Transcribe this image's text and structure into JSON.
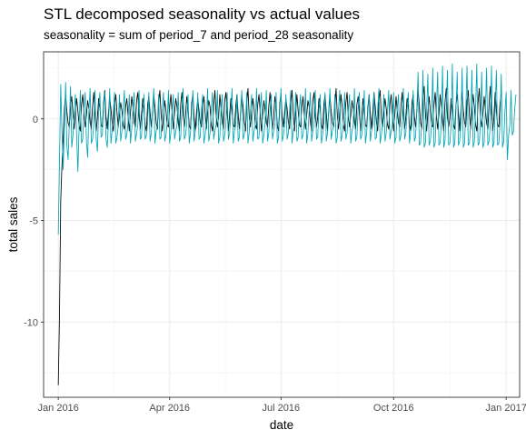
{
  "chart_data": {
    "type": "line",
    "title": "STL decomposed seasonality vs actual values",
    "subtitle": "seasonality = sum of period_7 and period_28 seasonality",
    "xlabel": "date",
    "ylabel": "total sales",
    "x_range": [
      "2015-12-20",
      "2017-01-12"
    ],
    "ylim": [
      -13.7,
      3.3
    ],
    "x_ticks": [
      {
        "date": "2016-01-01",
        "label": "Jan 2016"
      },
      {
        "date": "2016-04-01",
        "label": "Apr 2016"
      },
      {
        "date": "2016-07-01",
        "label": "Jul 2016"
      },
      {
        "date": "2016-10-01",
        "label": "Oct 2016"
      },
      {
        "date": "2017-01-01",
        "label": "Jan 2017"
      }
    ],
    "y_ticks": [
      {
        "value": 0,
        "label": "0"
      },
      {
        "value": -5,
        "label": "-5"
      },
      {
        "value": -10,
        "label": "-10"
      }
    ],
    "grid": true,
    "legend": "none",
    "series": [
      {
        "color": "#000000",
        "start_date": "2016-01-01",
        "values": [
          -13.1,
          -9.6,
          -4.0,
          -2.3,
          -1.0,
          0.5,
          1.2,
          0.4,
          -0.2,
          -0.4,
          0.6,
          1.1,
          0.2,
          -0.5,
          0.3,
          1.0,
          0.4,
          -0.3,
          -0.6,
          0.7,
          1.2,
          0.3,
          -0.4,
          0.2,
          0.9,
          0.5,
          -0.2,
          -0.5,
          0.6,
          1.3,
          0.2,
          -0.6,
          0.1,
          1.0,
          0.6,
          -0.3,
          -0.4,
          0.8,
          1.4,
          0.1,
          -0.5,
          0.3,
          1.1,
          0.5,
          -0.2,
          -0.6,
          0.7,
          1.2,
          0.3,
          -0.4,
          0.2,
          0.8,
          0.4,
          -0.3,
          -0.5,
          0.6,
          1.0,
          0.2,
          -0.6,
          0.3,
          1.1,
          0.6,
          -0.2,
          -0.4,
          0.9,
          1.3,
          0.1,
          -0.5,
          0.2,
          1.0,
          0.5,
          -0.3,
          -0.6,
          0.7,
          1.1,
          0.3,
          -0.4,
          0.4,
          1.2,
          0.6,
          -0.2,
          -0.5,
          0.8,
          1.4,
          0.2,
          -0.6,
          0.1,
          0.9,
          0.4,
          -0.3,
          -0.4,
          0.6,
          1.2,
          0.3,
          -0.5,
          0.3,
          1.0,
          0.6,
          -0.2,
          -0.6,
          0.7,
          1.3,
          0.2,
          -0.4,
          0.2,
          1.1,
          0.5,
          -0.3,
          -0.5,
          0.8,
          1.2,
          0.1,
          -0.6,
          0.4,
          1.0,
          0.4,
          -0.2,
          -0.4,
          0.6,
          1.1,
          0.3,
          -0.5,
          0.3,
          0.9,
          0.6,
          -0.3,
          -0.6,
          0.7,
          1.4,
          0.2,
          -0.4,
          0.1,
          1.2,
          0.5,
          -0.2,
          -0.5,
          0.9,
          1.3,
          0.3,
          -0.6,
          0.2,
          1.0,
          0.4,
          -0.3,
          -0.4,
          0.6,
          1.2,
          0.2,
          -0.5,
          0.4,
          1.1,
          0.6,
          -0.2,
          -0.6,
          0.8,
          1.5,
          0.1,
          -0.4,
          0.3,
          1.0,
          0.5,
          -0.3,
          -0.5,
          0.7,
          1.2,
          0.3,
          -0.6,
          0.2,
          0.9,
          0.4,
          -0.2,
          -0.4,
          0.6,
          1.3,
          0.2,
          -0.5,
          0.1,
          1.1,
          0.6,
          -0.3,
          -0.6,
          0.8,
          1.2,
          0.1,
          -0.4,
          0.4,
          1.0,
          0.5,
          -0.2,
          -0.5,
          0.7,
          1.4,
          0.3,
          -0.6,
          0.3,
          1.2,
          0.4,
          -0.3,
          -0.4,
          0.6,
          1.1,
          0.2,
          -0.5,
          0.2,
          0.9,
          0.6,
          -0.2,
          -0.6,
          0.9,
          1.3,
          0.1,
          -0.4,
          0.1,
          1.0,
          0.5,
          -0.3,
          -0.5,
          0.7,
          1.2,
          0.3,
          -0.6,
          0.4,
          1.1,
          0.4,
          -0.2,
          -0.4,
          0.6,
          1.5,
          0.2,
          -0.5,
          0.3,
          1.2,
          0.6,
          -0.3,
          -0.6,
          0.8,
          1.3,
          0.1,
          -0.4,
          0.2,
          0.9,
          0.5,
          -0.2,
          -0.5,
          0.7,
          1.1,
          0.3,
          -0.6,
          0.1,
          1.0,
          0.4,
          -0.3,
          -0.4,
          0.6,
          1.2,
          0.2,
          -0.5,
          0.4,
          1.3,
          0.6,
          -0.2,
          -0.6,
          0.9,
          1.4,
          0.1,
          -0.4,
          0.3,
          1.0,
          0.5,
          -0.3,
          -0.5,
          0.7,
          1.2,
          0.3,
          -0.6,
          0.2,
          1.1,
          0.4,
          -0.2,
          -0.4,
          0.6,
          1.3,
          0.2,
          -0.5,
          0.1,
          1.0,
          0.6,
          -0.3,
          -0.6,
          0.8,
          1.2,
          0.1,
          -0.4,
          0.4,
          1.4,
          0.7,
          -0.2,
          -0.5,
          0.9,
          1.6,
          0.3,
          -0.6,
          0.3,
          1.1,
          0.4,
          -0.3,
          -0.4,
          0.7,
          1.3,
          0.2,
          -0.5,
          0.2,
          1.2,
          0.6,
          -0.2,
          -0.6,
          0.8,
          1.5,
          0.1,
          -0.4,
          0.1,
          1.0,
          0.5,
          -0.3,
          -0.5,
          0.7,
          1.2,
          0.3,
          -0.6,
          0.4,
          1.3,
          0.4,
          -0.2,
          -0.4,
          0.9,
          1.4,
          0.2,
          -0.5,
          0.3,
          1.2,
          0.6,
          -0.3,
          -0.6,
          0.8,
          1.5,
          0.1,
          -0.4,
          0.2,
          1.1,
          0.5,
          -0.2,
          -0.5,
          0.7,
          1.6,
          0.3,
          -0.6,
          0.1,
          1.3,
          0.4,
          -0.3,
          -0.4,
          0.8,
          1.2
        ]
      },
      {
        "color": "#00A5B5",
        "start_date": "2016-01-01",
        "values": [
          -5.7,
          -2.1,
          1.7,
          -0.6,
          -2.5,
          -0.3,
          1.8,
          -1.3,
          -2.0,
          -0.2,
          1.6,
          -1.4,
          -0.8,
          0.5,
          1.2,
          -0.8,
          -2.6,
          -0.4,
          1.4,
          -1.2,
          -1.0,
          0.6,
          1.3,
          -1.1,
          -1.9,
          0.4,
          1.5,
          -1.2,
          -1.0,
          -0.3,
          1.4,
          -1.0,
          -1.6,
          0.5,
          1.3,
          -0.9,
          -0.8,
          0.6,
          1.3,
          -1.0,
          -1.4,
          -0.2,
          1.5,
          -1.2,
          -0.6,
          0.4,
          1.3,
          -1.2,
          -0.9,
          -0.3,
          1.2,
          -1.1,
          -0.6,
          0.5,
          1.4,
          -1.0,
          -0.8,
          -0.2,
          1.2,
          -1.2,
          -0.5,
          0.4,
          1.3,
          -1.1,
          -0.7,
          -0.3,
          1.4,
          -1.0,
          -0.9,
          0.5,
          1.2,
          -1.0,
          -0.8,
          -0.2,
          1.3,
          -1.1,
          -0.7,
          0.4,
          1.5,
          -1.2,
          -0.6,
          -0.3,
          1.2,
          -1.0,
          -0.9,
          0.5,
          1.3,
          -1.1,
          -0.8,
          -0.2,
          1.4,
          -1.2,
          -0.7,
          0.4,
          1.2,
          -1.0,
          -0.6,
          -0.3,
          1.3,
          -1.1,
          -0.9,
          0.5,
          1.5,
          -1.0,
          -0.8,
          -0.2,
          1.2,
          -1.2,
          -0.7,
          0.4,
          1.4,
          -1.1,
          -0.6,
          -0.3,
          1.3,
          -1.0,
          -0.9,
          0.5,
          1.2,
          -1.2,
          -0.8,
          -0.2,
          1.5,
          -1.1,
          -0.7,
          0.4,
          1.3,
          -1.0,
          -0.6,
          -0.3,
          1.4,
          -1.2,
          -0.9,
          0.5,
          1.2,
          -1.1,
          -0.8,
          -0.2,
          1.3,
          -1.0,
          -0.7,
          0.4,
          1.5,
          -1.2,
          -0.6,
          -0.3,
          1.2,
          -1.1,
          -0.9,
          0.5,
          1.4,
          -1.0,
          -0.8,
          -0.2,
          1.3,
          -1.2,
          -0.7,
          0.4,
          1.2,
          -1.1,
          -0.6,
          -0.3,
          1.5,
          -1.0,
          -0.9,
          0.5,
          1.3,
          -1.2,
          -0.8,
          -0.2,
          1.4,
          -1.1,
          -0.7,
          0.4,
          1.2,
          -1.0,
          -0.6,
          -0.3,
          1.3,
          -1.2,
          -0.9,
          0.5,
          1.5,
          -1.1,
          -0.8,
          -0.2,
          1.2,
          -1.0,
          -0.7,
          0.4,
          1.4,
          -1.2,
          -0.6,
          -0.3,
          1.3,
          -1.1,
          -0.9,
          0.5,
          1.2,
          -1.0,
          -0.8,
          -0.2,
          1.5,
          -1.2,
          -0.7,
          0.4,
          1.3,
          -1.1,
          -0.6,
          -0.3,
          1.4,
          -1.0,
          -0.9,
          0.5,
          1.2,
          -1.2,
          -0.8,
          -0.2,
          1.3,
          -1.1,
          -0.7,
          0.4,
          1.5,
          -1.0,
          -0.6,
          -0.3,
          1.2,
          -1.2,
          -0.9,
          0.5,
          1.4,
          -1.1,
          -0.8,
          -0.2,
          1.3,
          -1.0,
          -0.7,
          0.4,
          1.2,
          -1.2,
          -0.6,
          -0.3,
          1.5,
          -1.1,
          -0.9,
          0.5,
          1.3,
          -1.0,
          -0.8,
          -0.2,
          1.4,
          -1.2,
          -0.7,
          0.4,
          1.2,
          -1.1,
          -0.6,
          -0.3,
          1.3,
          -1.0,
          -0.9,
          0.5,
          1.5,
          -1.2,
          -0.8,
          -0.2,
          1.2,
          -1.1,
          -0.7,
          0.4,
          1.4,
          -1.0,
          -0.6,
          -0.3,
          1.3,
          -1.2,
          -0.9,
          0.5,
          1.2,
          -1.1,
          -0.8,
          -0.2,
          1.5,
          -1.0,
          -0.7,
          0.4,
          1.3,
          -1.2,
          -0.6,
          -0.3,
          1.4,
          -1.1,
          -0.9,
          0.5,
          2.3,
          -1.3,
          -1.2,
          -0.2,
          2.4,
          -1.4,
          -1.2,
          0.4,
          2.2,
          -1.3,
          -1.1,
          -0.3,
          2.5,
          -1.4,
          -1.2,
          0.5,
          2.3,
          -1.3,
          -1.2,
          -0.2,
          2.6,
          -1.4,
          -1.1,
          0.4,
          2.4,
          -1.3,
          -1.2,
          -0.3,
          2.7,
          -1.4,
          -1.2,
          0.5,
          2.3,
          -1.3,
          -1.1,
          -0.2,
          2.5,
          -1.4,
          -1.2,
          0.4,
          2.6,
          -1.3,
          -1.2,
          -0.3,
          2.4,
          -1.4,
          -1.1,
          0.5,
          2.7,
          -1.3,
          -1.2,
          -0.2,
          2.3,
          -1.4,
          -1.2,
          0.4,
          2.5,
          -1.3,
          -1.1,
          -0.3,
          2.6,
          -1.4,
          -1.2,
          0.5,
          2.4,
          -1.3,
          -1.2,
          -0.2,
          2.2,
          -1.4,
          -1.1,
          0.4,
          1.3,
          -2.0,
          -0.8,
          -0.3,
          1.4,
          -0.8,
          -0.6,
          0.5,
          1.2
        ]
      }
    ]
  }
}
